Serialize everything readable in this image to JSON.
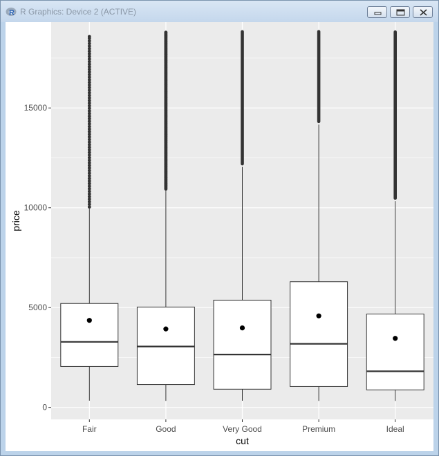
{
  "window": {
    "title": "R Graphics: Device 2 (ACTIVE)",
    "app_icon": "r-logo-icon",
    "controls": [
      "minimize-icon",
      "maximize-icon",
      "close-icon"
    ]
  },
  "chart_data": {
    "type": "boxplot",
    "xlabel": "cut",
    "ylabel": "price",
    "categories": [
      "Fair",
      "Good",
      "Very Good",
      "Premium",
      "Ideal"
    ],
    "ylim": [
      -600,
      19300
    ],
    "yticks": [
      0,
      5000,
      10000,
      15000
    ],
    "ytick_labels": [
      "0",
      "5000",
      "10000",
      "15000"
    ],
    "grid": true,
    "legend": "none",
    "boxes": [
      {
        "name": "Fair",
        "min": 337,
        "q1": 2050,
        "median": 3282,
        "q3": 5206,
        "upper_whisker": 9950,
        "max": 18574,
        "mean": 4359
      },
      {
        "name": "Good",
        "min": 327,
        "q1": 1145,
        "median": 3050,
        "q3": 5028,
        "upper_whisker": 10850,
        "max": 18788,
        "mean": 3929
      },
      {
        "name": "Very Good",
        "min": 336,
        "q1": 912,
        "median": 2648,
        "q3": 5373,
        "upper_whisker": 12050,
        "max": 18818,
        "mean": 3982
      },
      {
        "name": "Premium",
        "min": 326,
        "q1": 1046,
        "median": 3185,
        "q3": 6296,
        "upper_whisker": 14170,
        "max": 18823,
        "mean": 4584
      },
      {
        "name": "Ideal",
        "min": 326,
        "q1": 878,
        "median": 1810,
        "q3": 4678,
        "upper_whisker": 10330,
        "max": 18806,
        "mean": 3458
      }
    ],
    "outlier_density": [
      "sparse",
      "dense",
      "solid",
      "solid",
      "solid"
    ],
    "colors": {
      "panel_background": "#ebebeb",
      "grid_major": "#ffffff",
      "box_fill": "#ffffff",
      "box_stroke": "#333333",
      "outlier": "#333333",
      "mean_point": "#000000"
    }
  }
}
